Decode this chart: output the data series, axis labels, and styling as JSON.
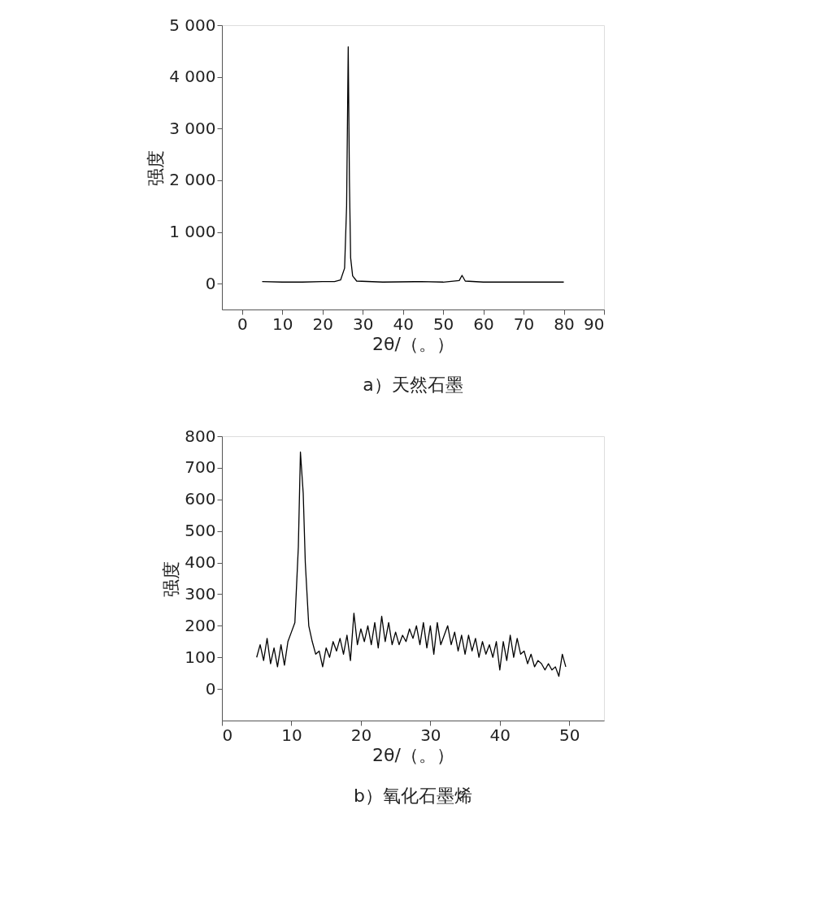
{
  "chart_data": [
    {
      "type": "line",
      "title": "a）天然石墨",
      "xlabel": "2θ/（。）",
      "ylabel": "强度",
      "xlim": [
        -5,
        90
      ],
      "xticks": [
        0,
        10,
        20,
        30,
        40,
        50,
        60,
        70,
        80,
        90
      ],
      "ylim": [
        -500,
        5000
      ],
      "yticks": [
        0,
        {
          "value": 1000,
          "label": "1 000"
        },
        {
          "value": 2000,
          "label": "2 000"
        },
        {
          "value": 3000,
          "label": "3 000"
        },
        {
          "value": 4000,
          "label": "4 000"
        },
        {
          "value": 5000,
          "label": "5 000"
        }
      ],
      "grid": false,
      "marker": "none",
      "line_style": "solid",
      "series": [
        {
          "color": "#000000",
          "x": [
            5,
            10,
            15,
            20,
            23,
            24.5,
            25.5,
            26,
            26.4,
            26.7,
            27,
            27.5,
            28.5,
            35,
            44.5,
            50,
            54,
            54.7,
            55.5,
            60,
            70,
            80
          ],
          "values": [
            40,
            30,
            30,
            40,
            40,
            70,
            300,
            1500,
            4580,
            2000,
            500,
            150,
            50,
            30,
            40,
            30,
            60,
            160,
            50,
            30,
            30,
            30
          ]
        }
      ]
    },
    {
      "type": "line",
      "title": "b）氧化石墨烯",
      "xlabel": "2θ/（。）",
      "ylabel": "强度",
      "xlim": [
        0,
        55
      ],
      "xticks": [
        0,
        10,
        20,
        30,
        40,
        50
      ],
      "ylim": [
        -100,
        800
      ],
      "yticks": [
        0,
        100,
        200,
        300,
        400,
        500,
        600,
        700,
        800
      ],
      "grid": false,
      "marker": "none",
      "line_style": "solid",
      "series": [
        {
          "color": "#000000",
          "x": [
            5,
            5.5,
            6,
            6.5,
            7,
            7.5,
            8,
            8.5,
            9,
            9.5,
            10,
            10.5,
            11,
            11.3,
            11.7,
            12,
            12.5,
            13,
            13.5,
            14,
            14.5,
            15,
            15.5,
            16,
            16.5,
            17,
            17.5,
            18,
            18.5,
            19,
            19.5,
            20,
            20.5,
            21,
            21.5,
            22,
            22.5,
            23,
            23.5,
            24,
            24.5,
            25,
            25.5,
            26,
            26.5,
            27,
            27.5,
            28,
            28.5,
            29,
            29.5,
            30,
            30.5,
            31,
            31.5,
            32,
            32.5,
            33,
            33.5,
            34,
            34.5,
            35,
            35.5,
            36,
            36.5,
            37,
            37.5,
            38,
            38.5,
            39,
            39.5,
            40,
            40.5,
            41,
            41.5,
            42,
            42.5,
            43,
            43.5,
            44,
            44.5,
            45,
            45.5,
            46,
            46.5,
            47,
            47.5,
            48,
            48.5,
            49,
            49.5
          ],
          "values": [
            100,
            140,
            90,
            160,
            80,
            130,
            70,
            140,
            75,
            150,
            180,
            210,
            450,
            750,
            620,
            400,
            200,
            150,
            110,
            120,
            70,
            130,
            100,
            150,
            120,
            160,
            110,
            170,
            90,
            240,
            140,
            190,
            150,
            200,
            140,
            210,
            130,
            230,
            150,
            210,
            140,
            180,
            140,
            170,
            150,
            190,
            160,
            200,
            140,
            210,
            130,
            200,
            110,
            210,
            140,
            170,
            200,
            140,
            180,
            120,
            170,
            110,
            170,
            120,
            160,
            100,
            150,
            110,
            140,
            100,
            150,
            60,
            150,
            90,
            170,
            100,
            160,
            110,
            120,
            80,
            110,
            70,
            90,
            80,
            60,
            80,
            60,
            70,
            40,
            110,
            70
          ]
        }
      ]
    }
  ]
}
